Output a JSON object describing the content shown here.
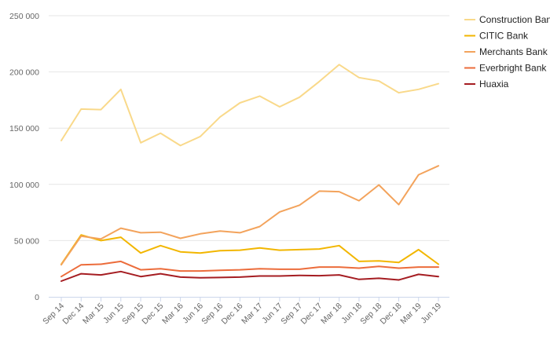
{
  "chart_data": {
    "type": "line",
    "title": "",
    "xlabel": "",
    "ylabel": "",
    "x": [
      "Sep 14",
      "Dec 14",
      "Mar 15",
      "Jun 15",
      "Sep 15",
      "Dec 15",
      "Mar 16",
      "Jun 16",
      "Sep 16",
      "Dec 16",
      "Mar 17",
      "Jun 17",
      "Sep 17",
      "Dec 17",
      "Mar 18",
      "Jun 18",
      "Sep 18",
      "Dec 18",
      "Mar 19",
      "Jun 19"
    ],
    "ylim": [
      0,
      250000
    ],
    "yticks": [
      0,
      50000,
      100000,
      150000,
      200000,
      250000
    ],
    "ytick_labels": [
      "0",
      "50 000",
      "100 000",
      "150 000",
      "200 000",
      "250 000"
    ],
    "grid": true,
    "legend_position": "top-right",
    "series": [
      {
        "name": "Construction Bank",
        "color": "#f9d98a",
        "values": [
          139000,
          167000,
          166500,
          184500,
          137000,
          145500,
          134500,
          142500,
          160000,
          172500,
          178500,
          169000,
          177500,
          191500,
          206500,
          195000,
          192000,
          181500,
          184500,
          189500
        ]
      },
      {
        "name": "CITIC Bank",
        "color": "#f2b600",
        "values": [
          29000,
          55000,
          50000,
          53000,
          39000,
          45500,
          40000,
          39000,
          41000,
          41500,
          43500,
          41500,
          42000,
          42500,
          45500,
          31500,
          32000,
          30500,
          42000,
          29000
        ]
      },
      {
        "name": "Merchants Bank",
        "color": "#f3a35c",
        "values": [
          28500,
          54000,
          51500,
          61000,
          57000,
          57500,
          52000,
          56000,
          58500,
          57000,
          62500,
          75500,
          81500,
          94000,
          93500,
          85500,
          99500,
          82000,
          108500,
          116500
        ]
      },
      {
        "name": "Everbright Bank",
        "color": "#ec6c3b",
        "values": [
          18000,
          28500,
          29000,
          31500,
          24000,
          25000,
          23000,
          23000,
          23500,
          24000,
          25000,
          24500,
          24500,
          26500,
          26500,
          25500,
          27000,
          25500,
          26500,
          26500
        ]
      },
      {
        "name": "Huaxia",
        "color": "#a51d22",
        "values": [
          14000,
          20500,
          19500,
          22500,
          18000,
          20500,
          17500,
          17000,
          17200,
          17500,
          18500,
          18500,
          19000,
          18800,
          19500,
          15500,
          16500,
          15000,
          20000,
          18000
        ]
      }
    ]
  }
}
